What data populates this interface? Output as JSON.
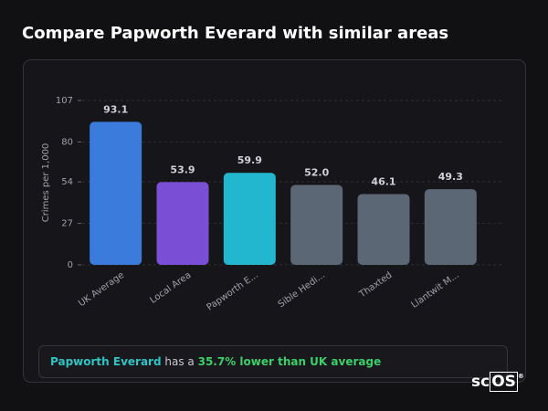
{
  "chart_data": {
    "type": "bar",
    "title": "Compare Papworth Everard with similar areas",
    "ylabel": "Crimes per 1,000",
    "categories": [
      "UK Average",
      "Local Area",
      "Papworth E...",
      "Sible Hedi...",
      "Thaxted",
      "Llantwit M..."
    ],
    "values": [
      93.1,
      53.9,
      59.9,
      52.0,
      46.1,
      49.3
    ],
    "value_labels": [
      "93.1",
      "53.9",
      "59.9",
      "52.0",
      "46.1",
      "49.3"
    ],
    "colors": [
      "#3a7bdc",
      "#7a4fd5",
      "#22b7cf",
      "#5c6776",
      "#5c6776",
      "#5c6776"
    ],
    "ylim": [
      0,
      107
    ],
    "yticks": [
      0,
      27,
      54,
      80,
      107
    ],
    "grid": true,
    "note": {
      "place": "Papworth Everard",
      "text": "has a",
      "highlight": "35.7% lower than UK average"
    },
    "logo": {
      "prefix": "sc",
      "boxed": "OS",
      "mark": "®"
    }
  }
}
